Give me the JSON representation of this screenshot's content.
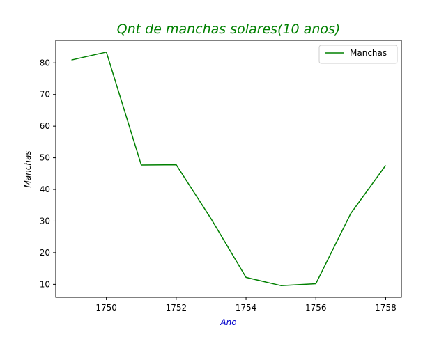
{
  "chart_data": {
    "type": "line",
    "title": "Qnt de manchas solares(10 anos)",
    "xlabel": "Ano",
    "ylabel": "Manchas",
    "x": [
      1749,
      1750,
      1751,
      1752,
      1753,
      1754,
      1755,
      1756,
      1757,
      1758
    ],
    "series": [
      {
        "name": "Manchas",
        "values": [
          80.9,
          83.4,
          47.7,
          47.8,
          30.7,
          12.2,
          9.6,
          10.2,
          32.4,
          47.6
        ],
        "color": "#008000"
      }
    ],
    "xticks": [
      1750,
      1752,
      1754,
      1756,
      1758
    ],
    "xtick_labels": [
      "1750",
      "1752",
      "1754",
      "1756",
      "1758"
    ],
    "yticks": [
      10,
      20,
      30,
      40,
      50,
      60,
      70,
      80
    ],
    "ytick_labels": [
      "10",
      "20",
      "30",
      "40",
      "50",
      "60",
      "70",
      "80"
    ],
    "xlim": [
      1748.55,
      1758.45
    ],
    "ylim": [
      5.9,
      87.1
    ],
    "grid": false,
    "legend_position": "top-right",
    "title_color": "#008000",
    "xlabel_color": "#0000cc",
    "ylabel_color": "#000000"
  }
}
